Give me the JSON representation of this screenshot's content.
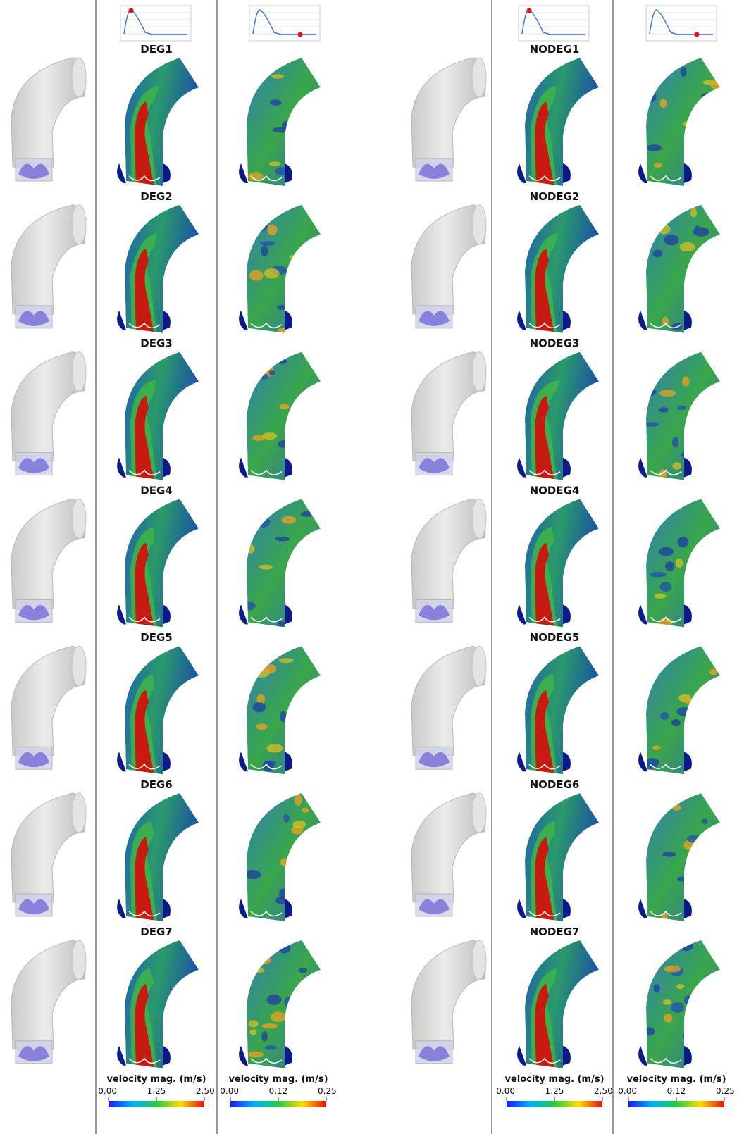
{
  "deg_cases": [
    "DEG1",
    "DEG2",
    "DEG3",
    "DEG4",
    "DEG5",
    "DEG6",
    "DEG7"
  ],
  "nodeg_cases": [
    "NODEG1",
    "NODEG2",
    "NODEG3",
    "NODEG4",
    "NODEG5",
    "NODEG6",
    "NODEG7"
  ],
  "colorbars": [
    {
      "title": "velocity mag. (m/s)",
      "ticks": [
        "0.00",
        "1.25",
        "2.50"
      ]
    },
    {
      "title": "velocity mag. (m/s)",
      "ticks": [
        "0.00",
        "0.12",
        "0.25"
      ]
    },
    {
      "title": "velocity mag. (m/s)",
      "ticks": [
        "0.00",
        "1.25",
        "2.50"
      ]
    },
    {
      "title": "velocity mag. (m/s)",
      "ticks": [
        "0.00",
        "0.12",
        "0.25"
      ]
    }
  ]
}
